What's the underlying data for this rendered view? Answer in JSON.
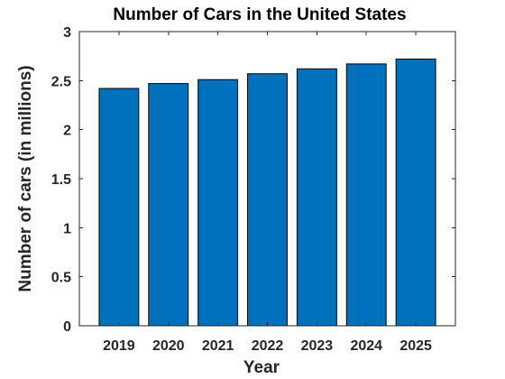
{
  "chart_data": {
    "type": "bar",
    "title": "Number of Cars in the United States",
    "xlabel": "Year",
    "ylabel": "Number of cars (in millions)",
    "categories": [
      "2019",
      "2020",
      "2021",
      "2022",
      "2023",
      "2024",
      "2025"
    ],
    "values": [
      2.42,
      2.47,
      2.51,
      2.57,
      2.62,
      2.67,
      2.72
    ],
    "ylim": [
      0,
      3
    ],
    "yticks": [
      0,
      0.5,
      1,
      1.5,
      2,
      2.5,
      3
    ],
    "ytick_labels": [
      "0",
      "0.5",
      "1",
      "1.5",
      "2",
      "2.5",
      "3"
    ],
    "grid": false,
    "bar_color": "#0072bd",
    "edge_color": "#000000",
    "axis_color": "#262626"
  }
}
